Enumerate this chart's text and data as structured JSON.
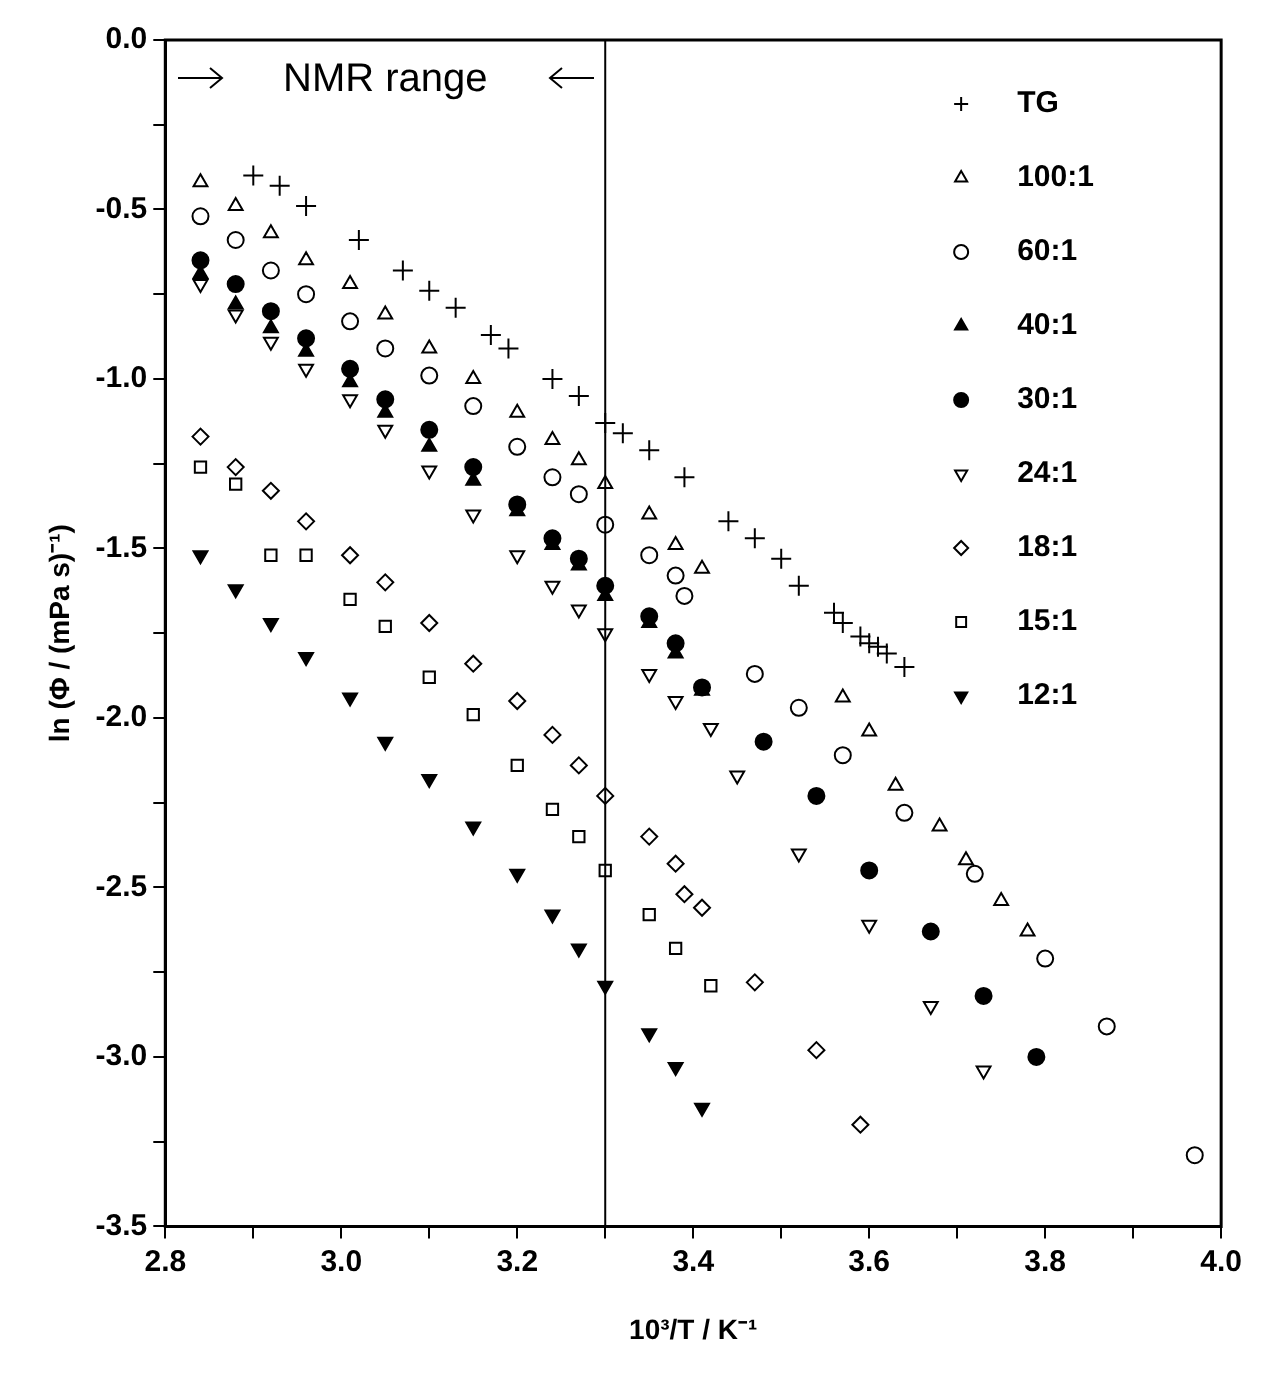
{
  "chart_data": {
    "type": "scatter",
    "xlabel": "10³/T / K⁻¹",
    "ylabel": "ln (Φ / (mPa s)⁻¹)",
    "xlim": [
      2.8,
      4.0
    ],
    "ylim": [
      -3.5,
      0
    ],
    "xticks": [
      2.8,
      {
        "value": 2.9,
        "label": null
      },
      {
        "value": 3,
        "label": "3.0"
      },
      {
        "value": 3.1,
        "label": null
      },
      3.2,
      {
        "value": 3.3,
        "label": null
      },
      3.4,
      {
        "value": 3.5,
        "label": null
      },
      3.6,
      {
        "value": 3.7,
        "label": null
      },
      3.8,
      {
        "value": 3.9,
        "label": null
      },
      {
        "value": 4,
        "label": "4.0"
      }
    ],
    "yticks": [
      {
        "value": 0,
        "label": "0.0"
      },
      {
        "value": -0.25,
        "label": null
      },
      -0.5,
      {
        "value": -0.75,
        "label": null
      },
      {
        "value": -1,
        "label": "-1.0"
      },
      {
        "value": -1.25,
        "label": null
      },
      -1.5,
      {
        "value": -1.75,
        "label": null
      },
      {
        "value": -2,
        "label": "-2.0"
      },
      {
        "value": -2.25,
        "label": null
      },
      -2.5,
      {
        "value": -2.75,
        "label": null
      },
      {
        "value": -3,
        "label": "-3.0"
      },
      {
        "value": -3.25,
        "label": null
      },
      -3.5
    ],
    "grid": false,
    "legend": "top right",
    "ref_lines": [
      {
        "axis": "x",
        "value": 3.3
      }
    ],
    "annotations": [
      "NMR range"
    ],
    "series": [
      {
        "name": "TG",
        "color": "#000000",
        "marker": "cross",
        "x": [
          2.9,
          2.93,
          2.96,
          3.02,
          3.07,
          3.1,
          3.13,
          3.17,
          3.19,
          3.24,
          3.27,
          3.3,
          3.32,
          3.35,
          3.39,
          3.44,
          3.47,
          3.5,
          3.52,
          3.56,
          3.57,
          3.59,
          3.6,
          3.61,
          3.62,
          3.64
        ],
        "values": [
          -0.4,
          -0.43,
          -0.49,
          -0.59,
          -0.68,
          -0.74,
          -0.79,
          -0.87,
          -0.91,
          -1.0,
          -1.05,
          -1.13,
          -1.16,
          -1.21,
          -1.29,
          -1.42,
          -1.47,
          -1.53,
          -1.61,
          -1.69,
          -1.72,
          -1.76,
          -1.78,
          -1.79,
          -1.81,
          -1.85
        ]
      },
      {
        "name": "100:1",
        "color": "#000000",
        "marker": "triangle",
        "x": [
          2.84,
          2.88,
          2.92,
          2.96,
          3.01,
          3.05,
          3.1,
          3.15,
          3.2,
          3.24,
          3.27,
          3.3,
          3.35,
          3.38,
          3.41,
          3.57,
          3.6,
          3.63,
          3.68,
          3.71,
          3.75,
          3.78
        ],
        "values": [
          -0.42,
          -0.49,
          -0.57,
          -0.65,
          -0.72,
          -0.81,
          -0.91,
          -1.0,
          -1.1,
          -1.18,
          -1.24,
          -1.31,
          -1.4,
          -1.49,
          -1.56,
          -1.94,
          -2.04,
          -2.2,
          -2.32,
          -2.42,
          -2.54,
          -2.63
        ]
      },
      {
        "name": "60:1",
        "color": "#000000",
        "marker": "circle",
        "x": [
          2.84,
          2.88,
          2.92,
          2.96,
          3.01,
          3.05,
          3.1,
          3.15,
          3.2,
          3.24,
          3.27,
          3.3,
          3.35,
          3.38,
          3.39,
          3.47,
          3.52,
          3.57,
          3.64,
          3.72,
          3.8,
          3.87,
          3.97
        ],
        "values": [
          -0.52,
          -0.59,
          -0.68,
          -0.75,
          -0.83,
          -0.91,
          -0.99,
          -1.08,
          -1.2,
          -1.29,
          -1.34,
          -1.43,
          -1.52,
          -1.58,
          -1.64,
          -1.87,
          -1.97,
          -2.11,
          -2.28,
          -2.46,
          -2.71,
          -2.91,
          -3.29
        ]
      },
      {
        "name": "40:1",
        "color": "#000000",
        "marker": "triangle-filled",
        "x": [
          2.84,
          2.88,
          2.92,
          2.96,
          3.01,
          3.05,
          3.1,
          3.15,
          3.2,
          3.24,
          3.27,
          3.3,
          3.35,
          3.38,
          3.41
        ],
        "values": [
          -0.69,
          -0.78,
          -0.85,
          -0.92,
          -1.01,
          -1.1,
          -1.2,
          -1.3,
          -1.39,
          -1.49,
          -1.55,
          -1.64,
          -1.72,
          -1.81,
          -1.92
        ]
      },
      {
        "name": "30:1",
        "color": "#000000",
        "marker": "circle-filled",
        "x": [
          2.84,
          2.88,
          2.92,
          2.96,
          3.01,
          3.05,
          3.1,
          3.15,
          3.2,
          3.24,
          3.27,
          3.3,
          3.35,
          3.38,
          3.41,
          3.48,
          3.54,
          3.6,
          3.67,
          3.73,
          3.79
        ],
        "values": [
          -0.65,
          -0.72,
          -0.8,
          -0.88,
          -0.97,
          -1.06,
          -1.15,
          -1.26,
          -1.37,
          -1.47,
          -1.53,
          -1.61,
          -1.7,
          -1.78,
          -1.91,
          -2.07,
          -2.23,
          -2.45,
          -2.63,
          -2.82,
          -3.0
        ]
      },
      {
        "name": "24:1",
        "color": "#000000",
        "marker": "triangle-down",
        "x": [
          2.84,
          2.88,
          2.92,
          2.96,
          3.01,
          3.05,
          3.1,
          3.15,
          3.2,
          3.24,
          3.27,
          3.3,
          3.35,
          3.38,
          3.42,
          3.45,
          3.52,
          3.6,
          3.67,
          3.73
        ],
        "values": [
          -0.72,
          -0.81,
          -0.89,
          -0.97,
          -1.06,
          -1.15,
          -1.27,
          -1.4,
          -1.52,
          -1.61,
          -1.68,
          -1.75,
          -1.87,
          -1.95,
          -2.03,
          -2.17,
          -2.4,
          -2.61,
          -2.85,
          -3.04
        ]
      },
      {
        "name": "18:1",
        "color": "#000000",
        "marker": "diamond",
        "x": [
          2.84,
          2.88,
          2.92,
          2.96,
          3.01,
          3.05,
          3.1,
          3.15,
          3.2,
          3.24,
          3.27,
          3.3,
          3.35,
          3.38,
          3.39,
          3.41,
          3.47,
          3.54,
          3.59
        ],
        "values": [
          -1.17,
          -1.26,
          -1.33,
          -1.42,
          -1.52,
          -1.6,
          -1.72,
          -1.84,
          -1.95,
          -2.05,
          -2.14,
          -2.23,
          -2.35,
          -2.43,
          -2.52,
          -2.56,
          -2.78,
          -2.98,
          -3.2
        ]
      },
      {
        "name": "15:1",
        "color": "#000000",
        "marker": "square",
        "x": [
          2.84,
          2.88,
          2.92,
          2.96,
          3.01,
          3.05,
          3.1,
          3.15,
          3.2,
          3.24,
          3.27,
          3.3,
          3.35,
          3.38,
          3.42
        ],
        "values": [
          -1.26,
          -1.31,
          -1.52,
          -1.52,
          -1.65,
          -1.73,
          -1.88,
          -1.99,
          -2.14,
          -2.27,
          -2.35,
          -2.45,
          -2.58,
          -2.68,
          -2.79
        ]
      },
      {
        "name": "12:1",
        "color": "#000000",
        "marker": "triangle-down-filled",
        "x": [
          2.84,
          2.88,
          2.92,
          2.96,
          3.01,
          3.05,
          3.1,
          3.15,
          3.2,
          3.24,
          3.27,
          3.3,
          3.35,
          3.38,
          3.41
        ],
        "values": [
          -1.52,
          -1.62,
          -1.72,
          -1.82,
          -1.94,
          -2.07,
          -2.18,
          -2.32,
          -2.46,
          -2.58,
          -2.68,
          -2.79,
          -2.93,
          -3.03,
          -3.15
        ]
      }
    ]
  }
}
